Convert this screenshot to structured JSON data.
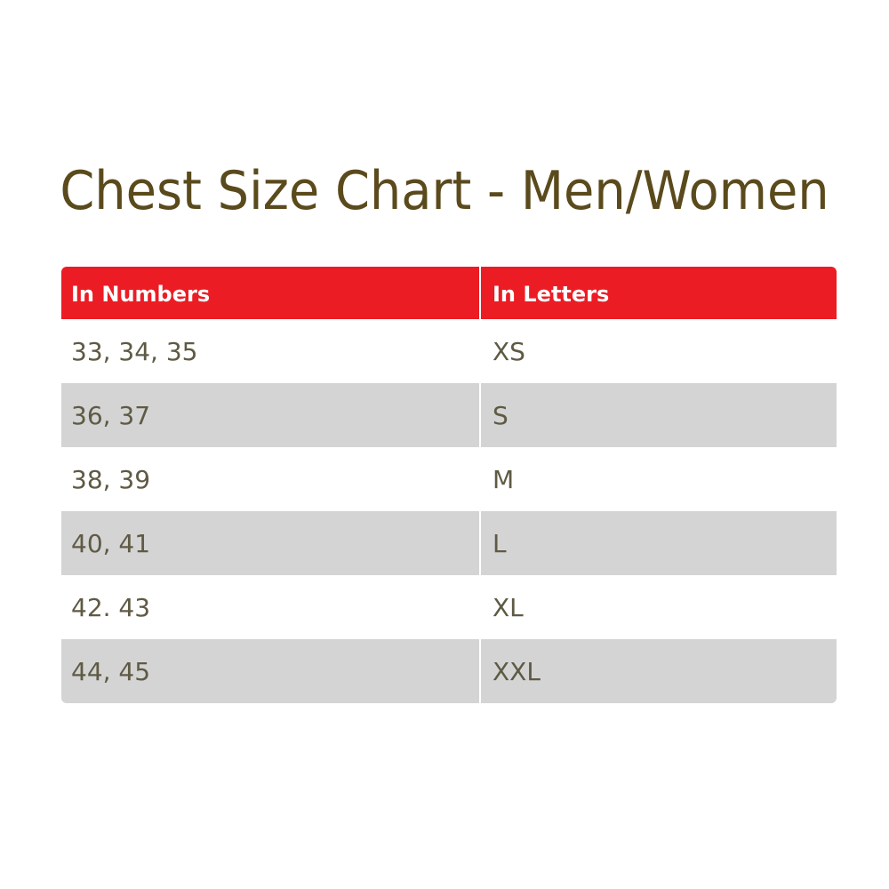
{
  "title": "Chest Size Chart - Men/Women",
  "table": {
    "headers": [
      "In Numbers",
      "In Letters"
    ],
    "rows": [
      [
        "33, 34, 35",
        "XS"
      ],
      [
        "36, 37",
        "S"
      ],
      [
        "38, 39",
        "M"
      ],
      [
        "40, 41",
        "L"
      ],
      [
        "42. 43",
        "XL"
      ],
      [
        "44, 45",
        "XXL"
      ]
    ]
  },
  "colors": {
    "header": "#ec1c24",
    "title": "#5a4a1c",
    "alt_row": "#d4d4d4"
  }
}
